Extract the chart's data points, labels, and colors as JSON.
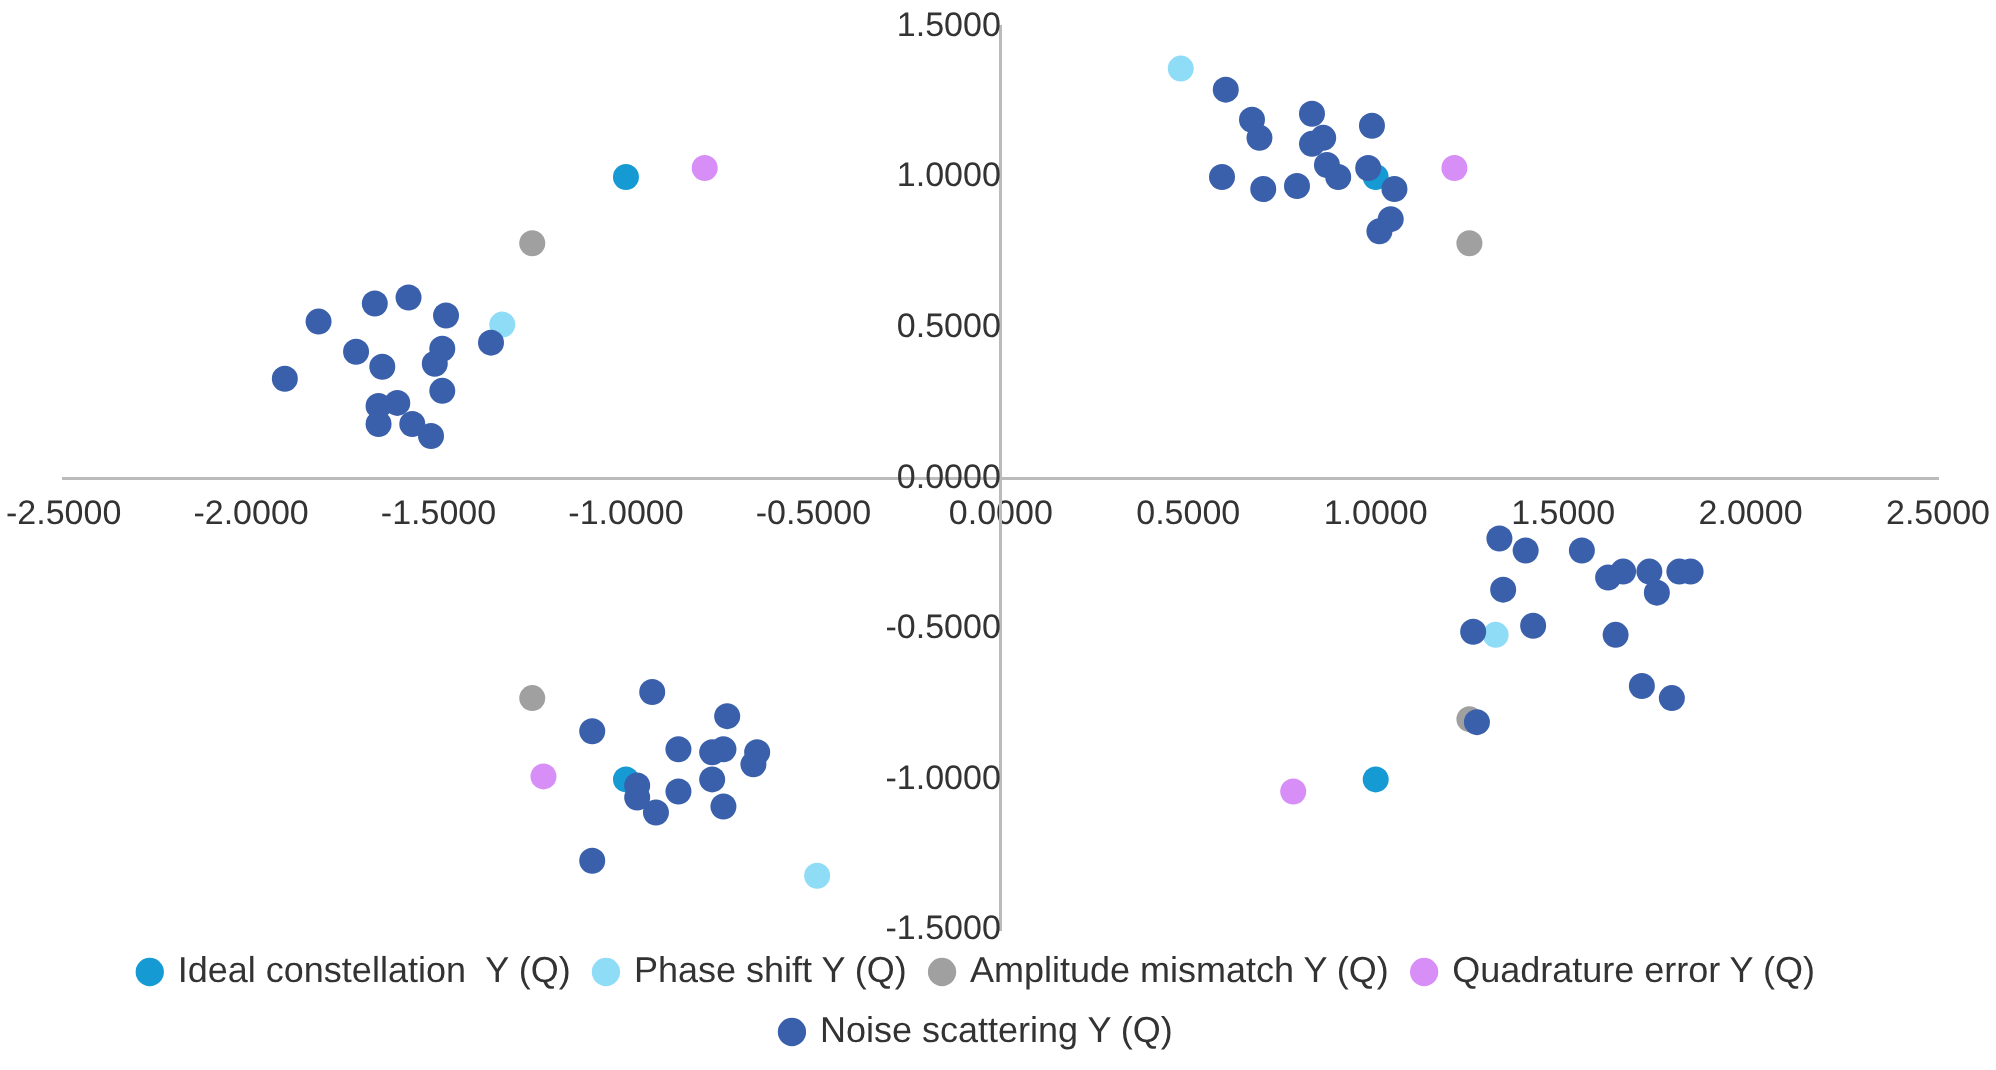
{
  "chart_data": {
    "type": "scatter",
    "series": [
      {
        "name": "Ideal constellation  Y (Q)",
        "color": "#159ad3",
        "x": [
          -1,
          1,
          1,
          -1
        ],
        "values": [
          1,
          1,
          -1,
          -1
        ]
      },
      {
        "name": "Phase shift Y (Q)",
        "color": "#8fdcf7",
        "x": [
          -1.33,
          0.48,
          1.32,
          -0.49
        ],
        "values": [
          0.51,
          1.36,
          -0.52,
          -1.32
        ]
      },
      {
        "name": "Amplitude mismatch Y (Q)",
        "color": "#a0a0a0",
        "x": [
          -1.25,
          1.25,
          1.25,
          -1.25
        ],
        "values": [
          0.78,
          0.78,
          -0.8,
          -0.73
        ]
      },
      {
        "name": "Quadrature error Y (Q)",
        "color": "#d88ef7",
        "x": [
          -0.79,
          1.21,
          0.78,
          -1.22
        ],
        "values": [
          1.03,
          1.03,
          -1.04,
          -0.99
        ]
      },
      {
        "name": "Noise scattering Y (Q)",
        "color": "#3a5fab",
        "x": [
          -1.82,
          -1.67,
          -1.58,
          -1.48,
          -1.91,
          -1.72,
          -1.65,
          -1.49,
          -1.51,
          -1.36,
          -1.49,
          -1.61,
          -1.66,
          -1.66,
          -1.57,
          -1.52,
          0.6,
          0.67,
          0.69,
          0.83,
          0.86,
          0.83,
          0.99,
          0.59,
          0.7,
          0.79,
          0.87,
          0.9,
          0.98,
          1.05,
          1.04,
          1.01,
          1.33,
          1.4,
          1.55,
          1.62,
          1.66,
          1.73,
          1.75,
          1.81,
          1.84,
          1.34,
          1.26,
          1.42,
          1.64,
          1.71,
          1.79,
          1.27,
          -0.93,
          -1.09,
          -0.73,
          -0.86,
          -0.77,
          -0.74,
          -0.65,
          -0.66,
          -0.97,
          -0.97,
          -0.92,
          -0.86,
          -0.77,
          -0.74,
          -1.09
        ],
        "values": [
          0.52,
          0.58,
          0.6,
          0.54,
          0.33,
          0.42,
          0.37,
          0.43,
          0.38,
          0.45,
          0.29,
          0.25,
          0.24,
          0.18,
          0.18,
          0.14,
          1.29,
          1.19,
          1.13,
          1.21,
          1.13,
          1.11,
          1.17,
          1.0,
          0.96,
          0.97,
          1.04,
          1.0,
          1.03,
          0.96,
          0.86,
          0.82,
          -0.2,
          -0.24,
          -0.24,
          -0.33,
          -0.31,
          -0.31,
          -0.38,
          -0.31,
          -0.31,
          -0.37,
          -0.51,
          -0.49,
          -0.52,
          -0.69,
          -0.73,
          -0.81,
          -0.71,
          -0.84,
          -0.79,
          -0.9,
          -0.91,
          -0.9,
          -0.91,
          -0.95,
          -1.02,
          -1.06,
          -1.11,
          -1.04,
          -1.0,
          -1.09,
          -1.27
        ]
      }
    ],
    "xlim": [
      -2.5,
      2.5
    ],
    "xticks": [
      {
        "value": -2.5,
        "label": "-2.5000"
      },
      {
        "value": -2,
        "label": "-2.0000"
      },
      {
        "value": -1.5,
        "label": "-1.5000"
      },
      {
        "value": -1,
        "label": "-1.0000"
      },
      {
        "value": -0.5,
        "label": "-0.5000"
      },
      {
        "value": 0,
        "label": "0.0000"
      },
      {
        "value": 0.5,
        "label": "0.5000"
      },
      {
        "value": 1,
        "label": "1.0000"
      },
      {
        "value": 1.5,
        "label": "1.5000"
      },
      {
        "value": 2,
        "label": "2.0000"
      },
      {
        "value": 2.5,
        "label": "2.5000"
      }
    ],
    "ylim": [
      -1.5,
      1.5
    ],
    "yticks": [
      {
        "value": -1.5,
        "label": "-1.5000"
      },
      {
        "value": -1,
        "label": "-1.0000"
      },
      {
        "value": -0.5,
        "label": "-0.5000"
      },
      {
        "value": 0,
        "label": "0.0000"
      },
      {
        "value": 0.5,
        "label": "0.5000"
      },
      {
        "value": 1,
        "label": "1.0000"
      },
      {
        "value": 1.5,
        "label": "1.5000"
      }
    ],
    "grid": false,
    "legend": "bottom",
    "marker": "circle"
  }
}
